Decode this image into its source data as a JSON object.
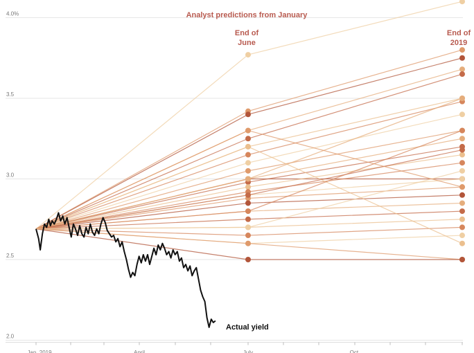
{
  "chart_data": {
    "type": "line",
    "title": "Analyst predictions from January",
    "xlabel": "",
    "ylabel": "",
    "x_ticks": [
      "Jan. 2019",
      "April",
      "July",
      "Oct."
    ],
    "y_ticks": [
      "4.0%",
      "3.5",
      "3.0",
      "2.5",
      "2.0"
    ],
    "y_tick_values": [
      4.0,
      3.5,
      3.0,
      2.5,
      2.0
    ],
    "ylim": [
      2.0,
      4.0
    ],
    "grid": true,
    "annotations": {
      "end_of_june": [
        "End of",
        "June"
      ],
      "end_of_2019": [
        "End of",
        "2019"
      ],
      "actual_yield": "Actual yield"
    },
    "start_value": 2.69,
    "predictions": [
      {
        "june": 3.77,
        "year_end": 4.1
      },
      {
        "june": 3.42,
        "year_end": 3.8
      },
      {
        "june": 3.4,
        "year_end": 3.75
      },
      {
        "june": 3.3,
        "year_end": 3.68
      },
      {
        "june": 3.25,
        "year_end": 3.65
      },
      {
        "june": 3.2,
        "year_end": 3.5
      },
      {
        "june": 3.15,
        "year_end": 3.48
      },
      {
        "june": 3.1,
        "year_end": 3.4
      },
      {
        "june": 3.05,
        "year_end": 3.3
      },
      {
        "june": 3.0,
        "year_end": 3.0
      },
      {
        "june": 3.0,
        "year_end": 3.25
      },
      {
        "june": 2.98,
        "year_end": 3.2
      },
      {
        "june": 2.95,
        "year_end": 3.15
      },
      {
        "june": 2.92,
        "year_end": 3.1
      },
      {
        "june": 2.9,
        "year_end": 3.0
      },
      {
        "june": 2.88,
        "year_end": 2.95
      },
      {
        "june": 2.85,
        "year_end": 2.9
      },
      {
        "june": 2.8,
        "year_end": 2.85
      },
      {
        "june": 2.75,
        "year_end": 2.8
      },
      {
        "june": 2.7,
        "year_end": 2.75
      },
      {
        "june": 2.65,
        "year_end": 2.7
      },
      {
        "june": 2.6,
        "year_end": 2.65
      },
      {
        "june": 2.6,
        "year_end": 2.5
      },
      {
        "june": 2.5,
        "year_end": 2.5
      },
      {
        "june": 3.0,
        "year_end": 3.5
      },
      {
        "june": 2.9,
        "year_end": 3.18
      },
      {
        "june": 3.2,
        "year_end": 2.6
      },
      {
        "june": 2.8,
        "year_end": 3.3
      },
      {
        "june": 2.7,
        "year_end": 3.05
      },
      {
        "june": 3.3,
        "year_end": 2.95
      }
    ],
    "actual_yield": [
      {
        "t": 0.0,
        "v": 2.69
      },
      {
        "t": 0.006,
        "v": 2.63
      },
      {
        "t": 0.01,
        "v": 2.56
      },
      {
        "t": 0.015,
        "v": 2.66
      },
      {
        "t": 0.02,
        "v": 2.72
      },
      {
        "t": 0.025,
        "v": 2.7
      },
      {
        "t": 0.03,
        "v": 2.75
      },
      {
        "t": 0.034,
        "v": 2.71
      },
      {
        "t": 0.038,
        "v": 2.74
      },
      {
        "t": 0.043,
        "v": 2.72
      },
      {
        "t": 0.048,
        "v": 2.75
      },
      {
        "t": 0.053,
        "v": 2.79
      },
      {
        "t": 0.058,
        "v": 2.74
      },
      {
        "t": 0.063,
        "v": 2.77
      },
      {
        "t": 0.068,
        "v": 2.72
      },
      {
        "t": 0.073,
        "v": 2.76
      },
      {
        "t": 0.078,
        "v": 2.7
      },
      {
        "t": 0.083,
        "v": 2.64
      },
      {
        "t": 0.088,
        "v": 2.72
      },
      {
        "t": 0.093,
        "v": 2.69
      },
      {
        "t": 0.098,
        "v": 2.65
      },
      {
        "t": 0.103,
        "v": 2.71
      },
      {
        "t": 0.108,
        "v": 2.66
      },
      {
        "t": 0.113,
        "v": 2.64
      },
      {
        "t": 0.118,
        "v": 2.7
      },
      {
        "t": 0.123,
        "v": 2.66
      },
      {
        "t": 0.128,
        "v": 2.72
      },
      {
        "t": 0.133,
        "v": 2.67
      },
      {
        "t": 0.138,
        "v": 2.65
      },
      {
        "t": 0.143,
        "v": 2.69
      },
      {
        "t": 0.148,
        "v": 2.66
      },
      {
        "t": 0.153,
        "v": 2.72
      },
      {
        "t": 0.158,
        "v": 2.76
      },
      {
        "t": 0.163,
        "v": 2.73
      },
      {
        "t": 0.168,
        "v": 2.68
      },
      {
        "t": 0.173,
        "v": 2.66
      },
      {
        "t": 0.178,
        "v": 2.64
      },
      {
        "t": 0.183,
        "v": 2.65
      },
      {
        "t": 0.188,
        "v": 2.61
      },
      {
        "t": 0.193,
        "v": 2.63
      },
      {
        "t": 0.198,
        "v": 2.58
      },
      {
        "t": 0.203,
        "v": 2.61
      },
      {
        "t": 0.208,
        "v": 2.55
      },
      {
        "t": 0.213,
        "v": 2.5
      },
      {
        "t": 0.218,
        "v": 2.44
      },
      {
        "t": 0.223,
        "v": 2.39
      },
      {
        "t": 0.228,
        "v": 2.42
      },
      {
        "t": 0.233,
        "v": 2.4
      },
      {
        "t": 0.238,
        "v": 2.47
      },
      {
        "t": 0.243,
        "v": 2.52
      },
      {
        "t": 0.248,
        "v": 2.48
      },
      {
        "t": 0.253,
        "v": 2.53
      },
      {
        "t": 0.258,
        "v": 2.49
      },
      {
        "t": 0.263,
        "v": 2.53
      },
      {
        "t": 0.268,
        "v": 2.47
      },
      {
        "t": 0.273,
        "v": 2.52
      },
      {
        "t": 0.278,
        "v": 2.57
      },
      {
        "t": 0.283,
        "v": 2.53
      },
      {
        "t": 0.288,
        "v": 2.59
      },
      {
        "t": 0.293,
        "v": 2.56
      },
      {
        "t": 0.298,
        "v": 2.6
      },
      {
        "t": 0.303,
        "v": 2.57
      },
      {
        "t": 0.308,
        "v": 2.53
      },
      {
        "t": 0.313,
        "v": 2.55
      },
      {
        "t": 0.318,
        "v": 2.51
      },
      {
        "t": 0.323,
        "v": 2.56
      },
      {
        "t": 0.328,
        "v": 2.53
      },
      {
        "t": 0.333,
        "v": 2.55
      },
      {
        "t": 0.338,
        "v": 2.49
      },
      {
        "t": 0.343,
        "v": 2.51
      },
      {
        "t": 0.348,
        "v": 2.45
      },
      {
        "t": 0.353,
        "v": 2.47
      },
      {
        "t": 0.358,
        "v": 2.43
      },
      {
        "t": 0.363,
        "v": 2.46
      },
      {
        "t": 0.368,
        "v": 2.4
      },
      {
        "t": 0.373,
        "v": 2.43
      },
      {
        "t": 0.378,
        "v": 2.45
      },
      {
        "t": 0.383,
        "v": 2.38
      },
      {
        "t": 0.388,
        "v": 2.31
      },
      {
        "t": 0.393,
        "v": 2.27
      },
      {
        "t": 0.398,
        "v": 2.24
      },
      {
        "t": 0.403,
        "v": 2.14
      },
      {
        "t": 0.408,
        "v": 2.08
      },
      {
        "t": 0.413,
        "v": 2.13
      },
      {
        "t": 0.418,
        "v": 2.11
      },
      {
        "t": 0.423,
        "v": 2.12
      }
    ]
  }
}
